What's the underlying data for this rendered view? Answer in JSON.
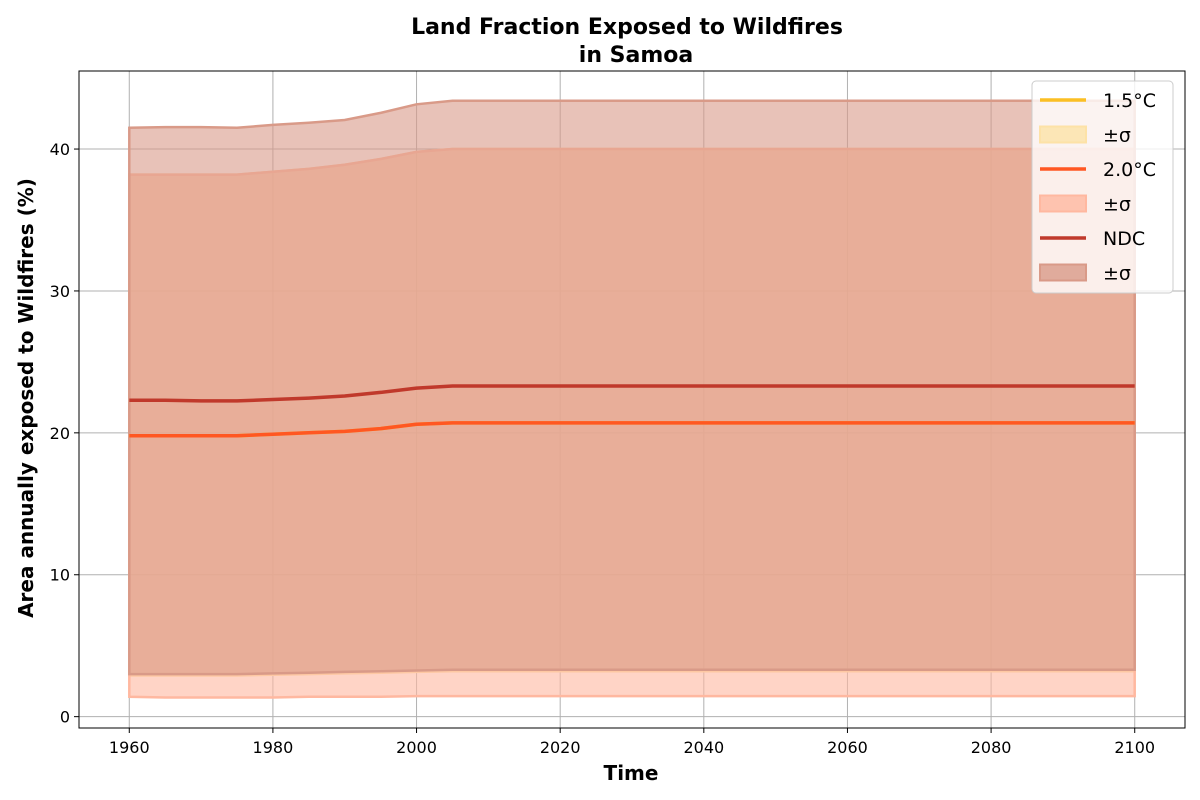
{
  "chart_data": {
    "type": "area",
    "title_lines": [
      "Land Fraction Exposed to Wildfires",
      "in Samoa"
    ],
    "xlabel": "Time",
    "ylabel": "Area annually exposed to Wildfires (%)",
    "xlim": [
      1953,
      2107
    ],
    "ylim": [
      -0.8,
      45.5
    ],
    "xticks": [
      1960,
      1980,
      2000,
      2020,
      2040,
      2060,
      2080,
      2100
    ],
    "yticks": [
      0,
      10,
      20,
      30,
      40
    ],
    "grid": true,
    "legend_position": "top-right",
    "x": [
      1960,
      1965,
      1970,
      1975,
      1980,
      1985,
      1990,
      1995,
      2000,
      2005,
      2010,
      2020,
      2030,
      2040,
      2050,
      2060,
      2070,
      2080,
      2090,
      2100
    ],
    "series": [
      {
        "name": "1.5°C",
        "color": "#fbbf24",
        "band_color": "#fde2a7",
        "mean": [
          19.8,
          19.8,
          19.8,
          19.8,
          19.9,
          20.0,
          20.1,
          20.3,
          20.6,
          20.7,
          20.7,
          20.7,
          20.7,
          20.7,
          20.7,
          20.7,
          20.7,
          20.7,
          20.7,
          20.7
        ],
        "lower": [
          2.9,
          2.9,
          2.9,
          2.9,
          2.95,
          3.0,
          3.05,
          3.1,
          3.15,
          3.2,
          3.2,
          3.2,
          3.2,
          3.2,
          3.2,
          3.2,
          3.2,
          3.2,
          3.2,
          3.2
        ],
        "upper": [
          38.2,
          38.2,
          38.2,
          38.2,
          38.4,
          38.6,
          38.9,
          39.3,
          39.8,
          40.0,
          40.0,
          40.0,
          40.0,
          40.0,
          40.0,
          40.0,
          40.0,
          40.0,
          40.0,
          40.0
        ]
      },
      {
        "name": "2.0°C",
        "color": "#ff5722",
        "band_color": "#ffb8a0",
        "mean": [
          19.8,
          19.8,
          19.8,
          19.8,
          19.9,
          20.0,
          20.1,
          20.3,
          20.6,
          20.7,
          20.7,
          20.7,
          20.7,
          20.7,
          20.7,
          20.7,
          20.7,
          20.7,
          20.7,
          20.7
        ],
        "lower": [
          1.4,
          1.35,
          1.35,
          1.35,
          1.35,
          1.4,
          1.4,
          1.4,
          1.45,
          1.45,
          1.45,
          1.45,
          1.45,
          1.45,
          1.45,
          1.45,
          1.45,
          1.45,
          1.45,
          1.45
        ],
        "upper": [
          38.2,
          38.2,
          38.2,
          38.2,
          38.4,
          38.6,
          38.9,
          39.3,
          39.8,
          40.0,
          40.0,
          40.0,
          40.0,
          40.0,
          40.0,
          40.0,
          40.0,
          40.0,
          40.0,
          40.0
        ]
      },
      {
        "name": "NDC",
        "color": "#c0392b",
        "band_color": "#d99a88",
        "mean": [
          22.3,
          22.3,
          22.25,
          22.25,
          22.35,
          22.45,
          22.6,
          22.85,
          23.15,
          23.3,
          23.3,
          23.3,
          23.3,
          23.3,
          23.3,
          23.3,
          23.3,
          23.3,
          23.3,
          23.3
        ],
        "lower": [
          3.0,
          3.0,
          3.0,
          3.0,
          3.05,
          3.1,
          3.15,
          3.2,
          3.25,
          3.3,
          3.3,
          3.3,
          3.3,
          3.3,
          3.3,
          3.3,
          3.3,
          3.3,
          3.3,
          3.3
        ],
        "upper": [
          41.5,
          41.55,
          41.55,
          41.5,
          41.7,
          41.85,
          42.05,
          42.55,
          43.15,
          43.4,
          43.4,
          43.4,
          43.4,
          43.4,
          43.4,
          43.4,
          43.4,
          43.4,
          43.4,
          43.4
        ]
      }
    ],
    "legend": [
      {
        "label": "1.5°C",
        "kind": "line",
        "color": "#fbbf24"
      },
      {
        "label": "±σ",
        "kind": "band",
        "color": "#fde2a7"
      },
      {
        "label": "2.0°C",
        "kind": "line",
        "color": "#ff5722"
      },
      {
        "label": "±σ",
        "kind": "band",
        "color": "#ffb8a0"
      },
      {
        "label": "NDC",
        "kind": "line",
        "color": "#c0392b"
      },
      {
        "label": "±σ",
        "kind": "band",
        "color": "#d99a88"
      }
    ]
  }
}
